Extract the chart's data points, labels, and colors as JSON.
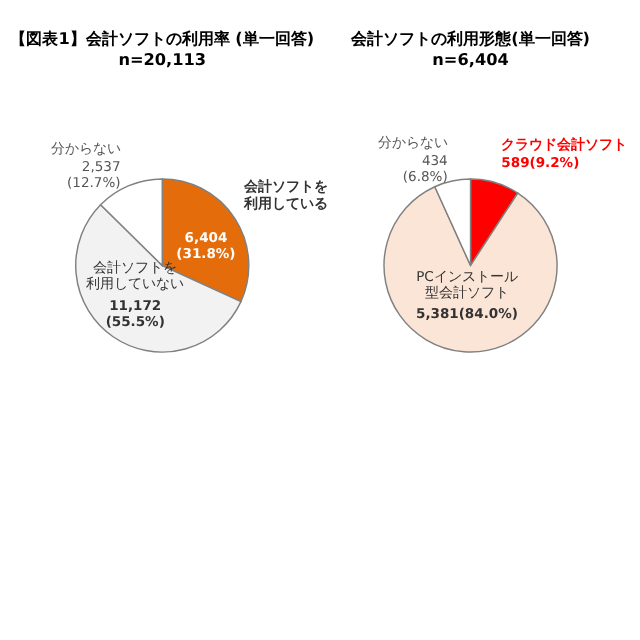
{
  "chart_data": [
    {
      "type": "pie",
      "title": "【図表1】会計ソフトの利用率 (単一回答)",
      "subtitle": "n=20,113",
      "categories": [
        "会計ソフトを利用している",
        "会計ソフトを利用していない",
        "分からない"
      ],
      "values": [
        6404,
        11172,
        2537
      ],
      "value_labels": [
        "6,404\n(31.8%)",
        "11,172\n(55.5%)",
        "2,537\n(12.7%)"
      ],
      "colors": [
        "#e46c0a",
        "#f2f2f2",
        "#ffffff"
      ],
      "legend": false
    },
    {
      "type": "pie",
      "title": "会計ソフトの利用形態(単一回答)",
      "subtitle": "n=6,404",
      "categories": [
        "クラウド会計ソフト",
        "PCインストール型会計ソフト",
        "分からない"
      ],
      "values": [
        589,
        5381,
        434
      ],
      "value_labels": [
        "589(9.2%)",
        "5,381(84.0%)",
        "434\n(6.8%)"
      ],
      "colors": [
        "#ff0000",
        "#fbe5d6",
        "#ffffff"
      ],
      "legend": false
    }
  ]
}
